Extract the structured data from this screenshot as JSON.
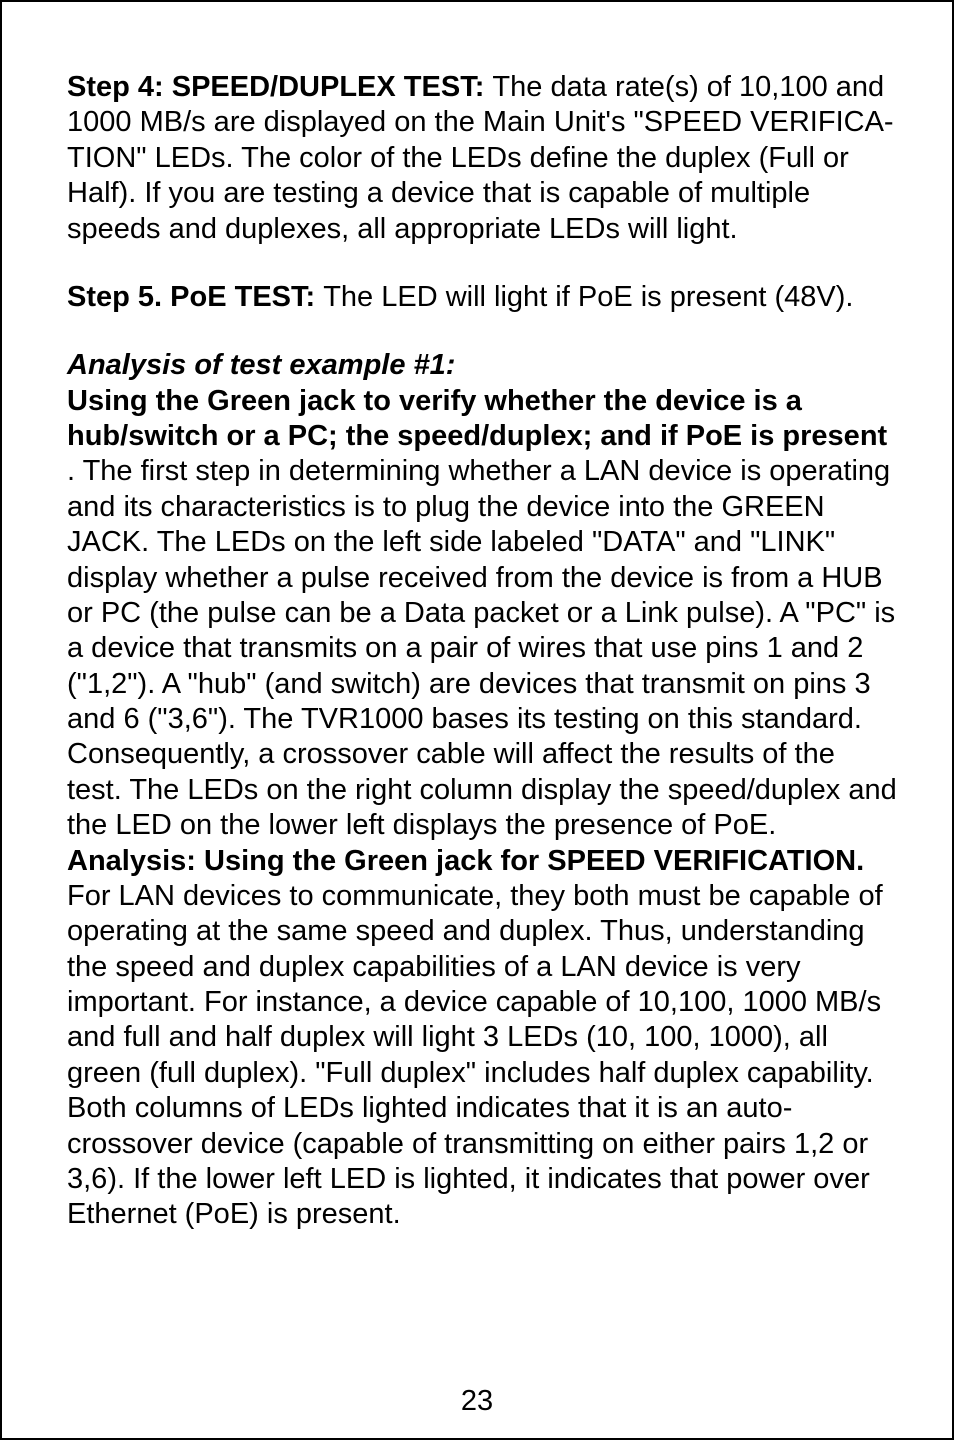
{
  "para1": {
    "lead": "Step 4:  SPEED/DUPLEX TEST: ",
    "body": "The data rate(s) of 10,100 and 1000 MB/s are displayed on the Main Unit's \"SPEED VERIFICA-TION\" LEDs. The color of the LEDs define the duplex (Full or Half). If you are testing a device that is capable of multiple speeds and duplexes, all appropriate LEDs will light."
  },
  "para2": {
    "lead": "Step 5. PoE TEST: ",
    "body": "The LED will light if PoE is present (48V)."
  },
  "para3": {
    "heading": "Analysis of test example #1:",
    "lead": "Using the Green jack to verify whether the device is a hub/switch or a PC; the speed/duplex; and if PoE is present ",
    "body": ". The first step in determining whether a LAN device is operating and its characteristics is to plug the device into the GREEN JACK. The LEDs on the left side labeled \"DATA\" and \"LINK\" display whether a pulse received from the device is from a HUB or PC (the pulse can be a Data packet or a Link pulse). A \"PC\" is a device that transmits on a pair of wires that use pins 1 and 2 (\"1,2\"). A \"hub\" (and switch) are devices that transmit on pins 3 and 6 (\"3,6\"). The TVR1000 bases its testing on this standard. Consequently, a crossover cable will affect the results of the test. The LEDs on the right column display the speed/duplex and the LED on the lower left displays the presence of PoE."
  },
  "para4": {
    "lead": "Analysis: Using the Green jack for SPEED VERIFICATION.",
    "body": "For LAN devices to communicate, they both must be capable of operating at the same speed and duplex. Thus, understanding the speed and duplex capabilities of a LAN device is very important. For instance, a device capable of 10,100, 1000 MB/s and full and half duplex will light 3 LEDs (10, 100, 1000), all green (full duplex). \"Full duplex\" includes half duplex capability. Both columns of LEDs lighted indicates that it is an auto-crossover device (capable of transmitting on either pairs 1,2 or 3,6). If the lower left LED is lighted, it indicates that power over Ethernet (PoE) is present."
  },
  "page_number": "23"
}
